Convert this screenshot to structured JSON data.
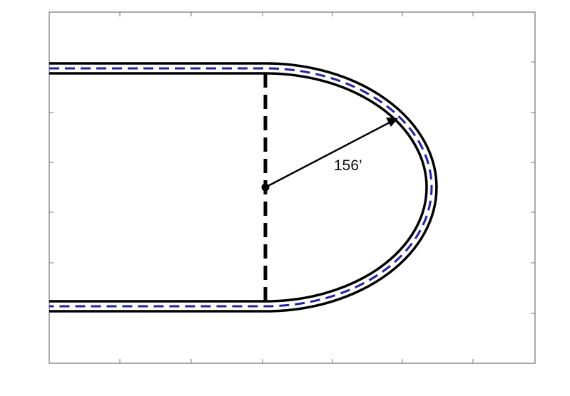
{
  "figure": {
    "radius_label": "156’",
    "colors": {
      "track_edge": "#000000",
      "centerline": "#1f1fb4",
      "frame": "#555555",
      "background": "#ffffff"
    }
  }
}
